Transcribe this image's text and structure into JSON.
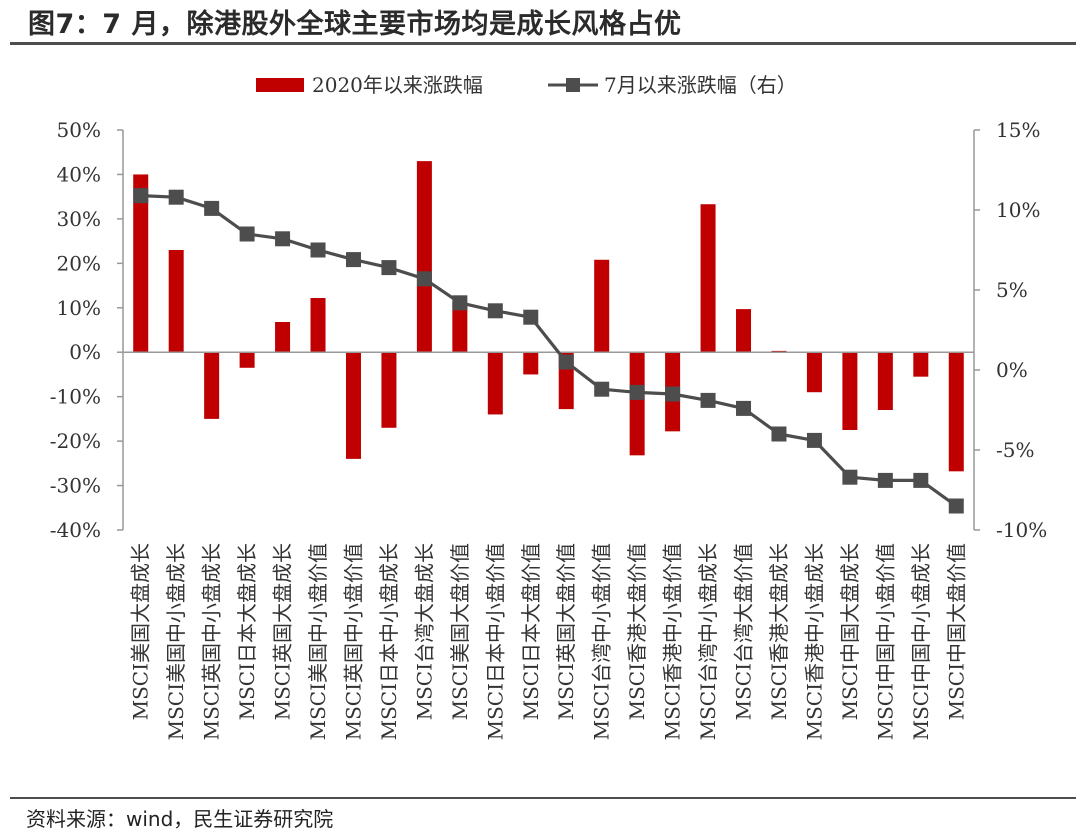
{
  "figure_title": "图7：7 月，除港股外全球主要市场均是成长风格占优",
  "source_note": "资料来源：wind，民生证券研究院",
  "chart_data": {
    "type": "bar",
    "categories": [
      "MSCI美国大盘成长",
      "MSCI美国中小盘成长",
      "MSCI英国中小盘成长",
      "MSCI日本大盘成长",
      "MSCI英国大盘成长",
      "MSCI美国中小盘价值",
      "MSCI英国中小盘价值",
      "MSCI日本中小盘成长",
      "MSCI台湾大盘成长",
      "MSCI美国大盘价值",
      "MSCI日本中小盘价值",
      "MSCI日本大盘价值",
      "MSCI英国大盘价值",
      "MSCI台湾中小盘价值",
      "MSCI香港大盘价值",
      "MSCI香港中小盘价值",
      "MSCI台湾中小盘成长",
      "MSCI台湾大盘价值",
      "MSCI香港大盘成长",
      "MSCI香港中小盘成长",
      "MSCI中国大盘成长",
      "MSCI中国中小盘价值",
      "MSCI中国中小盘成长",
      "MSCI中国大盘价值"
    ],
    "series": [
      {
        "name": "2020年以来涨跌幅",
        "type": "bar",
        "axis": "left",
        "color": "#c00000",
        "values": [
          40,
          23,
          -15,
          -3.5,
          6.8,
          12.2,
          -24,
          -17,
          43,
          11.2,
          -14,
          -5,
          -12.8,
          20.8,
          -23.2,
          -17.8,
          33.3,
          9.7,
          0.3,
          -9,
          -17.5,
          -13,
          -5.5,
          -26.8
        ]
      },
      {
        "name": "7月以来涨跌幅（右）",
        "type": "line",
        "axis": "right",
        "color": "#4d4d4d",
        "values": [
          10.9,
          10.8,
          10.1,
          8.5,
          8.2,
          7.5,
          6.9,
          6.4,
          5.7,
          4.2,
          3.7,
          3.3,
          0.5,
          -1.2,
          -1.4,
          -1.5,
          -1.9,
          -2.4,
          -4.0,
          -4.4,
          -6.7,
          -6.9,
          -6.9,
          -8.5
        ]
      }
    ],
    "y_left": {
      "min": -40,
      "max": 50,
      "step": 10,
      "ticks": [
        "-40%",
        "-30%",
        "-20%",
        "-10%",
        "0%",
        "10%",
        "20%",
        "30%",
        "40%",
        "50%"
      ]
    },
    "y_right": {
      "min": -10,
      "max": 15,
      "step": 5,
      "ticks": [
        "-10%",
        "-5%",
        "0%",
        "5%",
        "10%",
        "15%"
      ]
    },
    "legend_position": "top-center",
    "grid": false
  }
}
